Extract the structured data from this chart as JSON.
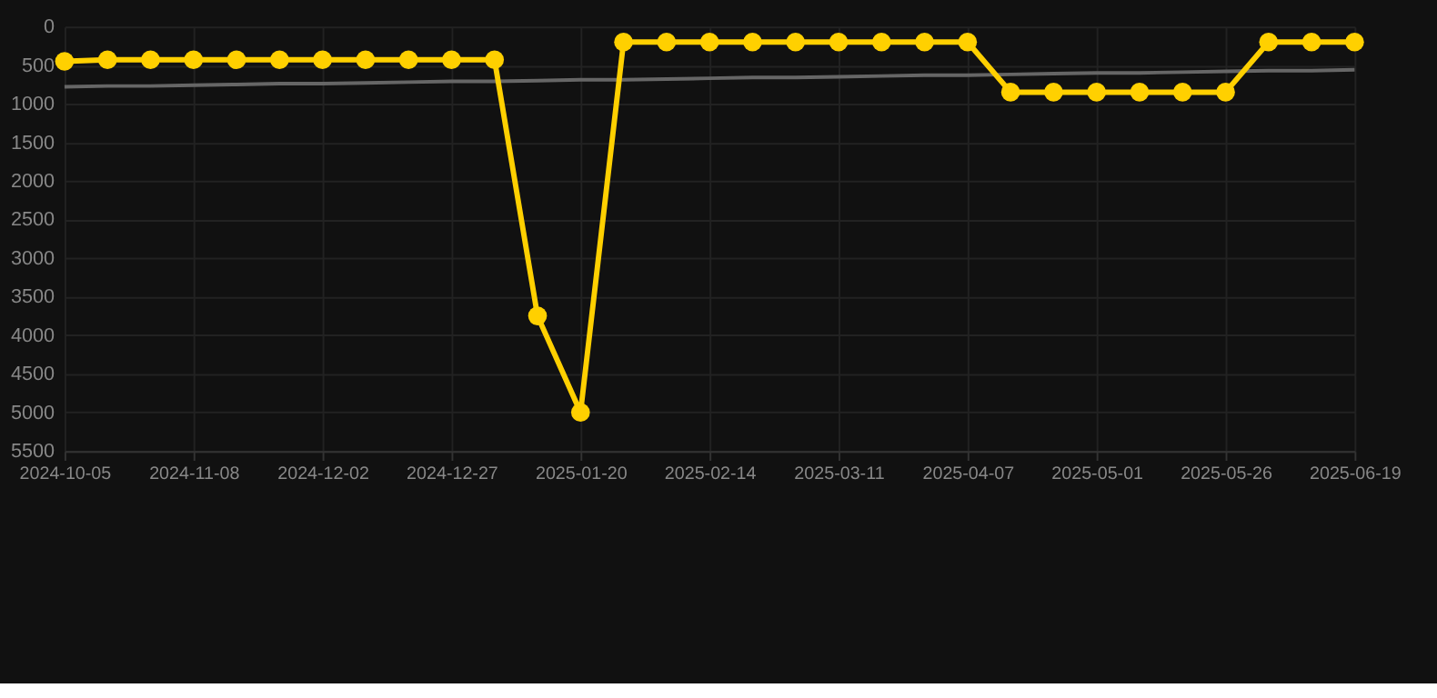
{
  "chart_data": {
    "type": "line",
    "categories": [
      "2024-10-05",
      null,
      null,
      "2024-11-08",
      null,
      null,
      "2024-12-02",
      null,
      null,
      "2024-12-27",
      null,
      null,
      "2025-01-20",
      null,
      null,
      "2025-02-14",
      null,
      null,
      "2025-03-11",
      null,
      null,
      "2025-04-07",
      null,
      null,
      "2025-05-01",
      null,
      null,
      "2025-05-26",
      null,
      null,
      "2025-06-19"
    ],
    "series": [
      {
        "color": "#ffd000",
        "marker": "circle",
        "values": [
          450,
          430,
          430,
          430,
          430,
          430,
          430,
          430,
          430,
          430,
          430,
          3750,
          5000,
          200,
          200,
          200,
          200,
          200,
          200,
          200,
          200,
          200,
          850,
          850,
          850,
          850,
          850,
          850,
          200,
          200,
          200
        ]
      },
      {
        "type": "line",
        "color": "#666666",
        "marker": "none",
        "values": [
          780,
          770,
          770,
          760,
          750,
          740,
          740,
          730,
          720,
          710,
          710,
          700,
          690,
          690,
          680,
          670,
          660,
          660,
          650,
          640,
          630,
          630,
          620,
          610,
          600,
          600,
          590,
          580,
          570,
          570,
          560
        ]
      }
    ],
    "ylim": [
      5500,
      0
    ],
    "yticks": [
      0,
      500,
      1000,
      1500,
      2000,
      2500,
      3000,
      3500,
      4000,
      4500,
      5000,
      5500
    ],
    "grid": true
  }
}
